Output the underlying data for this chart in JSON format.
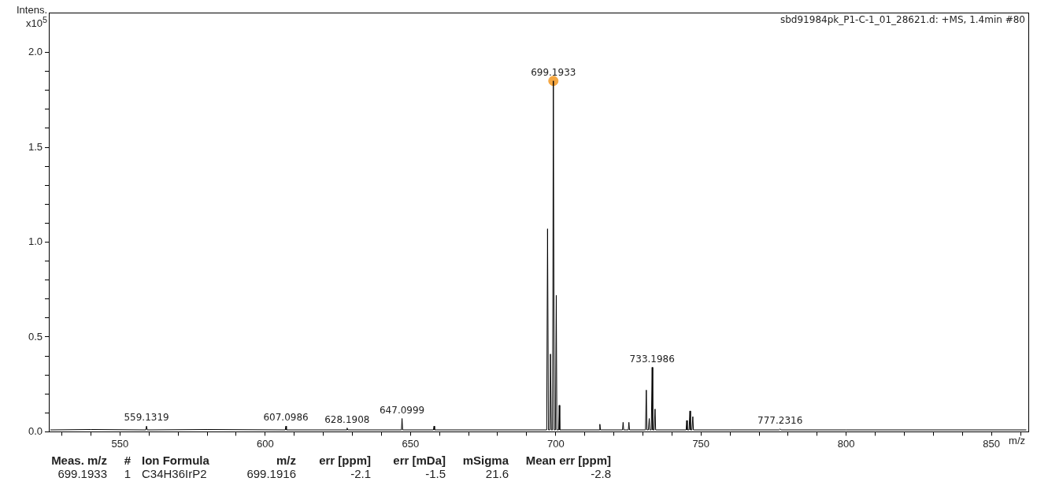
{
  "chart_data": {
    "type": "line",
    "title": "sbd91984pk_P1-C-1_01_28621.d: +MS, 1.4min #80",
    "xlabel": "m/z",
    "ylabel": "Intens. x10$^{5}$",
    "xlim": [
      525.5,
      862.7
    ],
    "xticks": [
      {
        "value": 530,
        "label": null
      },
      {
        "value": 540,
        "label": null
      },
      550,
      {
        "value": 560,
        "label": null
      },
      {
        "value": 570,
        "label": null
      },
      {
        "value": 580,
        "label": null
      },
      {
        "value": 590,
        "label": null
      },
      600,
      {
        "value": 610,
        "label": null
      },
      {
        "value": 620,
        "label": null
      },
      {
        "value": 630,
        "label": null
      },
      {
        "value": 640,
        "label": null
      },
      650,
      {
        "value": 660,
        "label": null
      },
      {
        "value": 670,
        "label": null
      },
      {
        "value": 680,
        "label": null
      },
      {
        "value": 690,
        "label": null
      },
      700,
      {
        "value": 710,
        "label": null
      },
      {
        "value": 720,
        "label": null
      },
      {
        "value": 730,
        "label": null
      },
      {
        "value": 740,
        "label": null
      },
      750,
      {
        "value": 760,
        "label": null
      },
      {
        "value": 770,
        "label": null
      },
      {
        "value": 780,
        "label": null
      },
      {
        "value": 790,
        "label": null
      },
      800,
      {
        "value": 810,
        "label": null
      },
      {
        "value": 820,
        "label": null
      },
      {
        "value": 830,
        "label": null
      },
      {
        "value": 840,
        "label": null
      },
      850,
      {
        "value": 860,
        "label": null
      }
    ],
    "ylim": [
      0,
      2.21
    ],
    "yticks": [
      {
        "value": 0,
        "label": "0.0"
      },
      {
        "value": 0.1,
        "label": null
      },
      {
        "value": 0.2,
        "label": null
      },
      {
        "value": 0.3,
        "label": null
      },
      {
        "value": 0.4,
        "label": null
      },
      0.5,
      {
        "value": 0.6,
        "label": null
      },
      {
        "value": 0.7,
        "label": null
      },
      {
        "value": 0.8,
        "label": null
      },
      {
        "value": 0.9,
        "label": null
      },
      {
        "value": 1,
        "label": "1.0"
      },
      {
        "value": 1.1,
        "label": null
      },
      {
        "value": 1.2,
        "label": null
      },
      {
        "value": 1.3,
        "label": null
      },
      {
        "value": 1.4,
        "label": null
      },
      1.5,
      {
        "value": 1.6,
        "label": null
      },
      {
        "value": 1.7,
        "label": null
      },
      {
        "value": 1.8,
        "label": null
      },
      {
        "value": 1.9,
        "label": null
      },
      {
        "value": 2,
        "label": "2.0"
      }
    ],
    "grid": false,
    "legend": false,
    "series": [
      {
        "color": "#000000",
        "marker": "none",
        "x": [
          526,
          540,
          558.9,
          559.13,
          559.4,
          580,
          606.9,
          607.1,
          607.3,
          628,
          628.19,
          628.4,
          646.9,
          647.1,
          647.3,
          657.9,
          658.1,
          658.3,
          680,
          696.9,
          697.19,
          697.5,
          698.0,
          698.19,
          698.5,
          698.9,
          699.19,
          699.5,
          699.9,
          700.19,
          700.4,
          701.0,
          701.2,
          701.4,
          715,
          715.2,
          715.4,
          723,
          723.2,
          723.4,
          725,
          725.2,
          725.4,
          730.9,
          731.19,
          731.4,
          731.9,
          732.2,
          732.4,
          732.9,
          733.1986,
          733.4,
          733.9,
          734.2,
          734.4,
          744.9,
          745.1,
          745.3,
          745.9,
          746.2,
          746.4,
          746.9,
          747.2,
          747.4,
          760,
          776.9,
          777.23,
          777.5,
          800,
          862
        ],
        "values": [
          0.01,
          0.012,
          0.01,
          0.03,
          0.01,
          0.012,
          0.01,
          0.03,
          0.01,
          0.01,
          0.02,
          0.01,
          0.01,
          0.07,
          0.01,
          0.01,
          0.03,
          0.01,
          0.01,
          0.01,
          1.07,
          0.01,
          0.01,
          0.41,
          0.01,
          0.01,
          1.85,
          0.01,
          0.01,
          0.72,
          0.01,
          0.01,
          0.14,
          0.01,
          0.01,
          0.04,
          0.01,
          0.01,
          0.05,
          0.01,
          0.01,
          0.05,
          0.01,
          0.01,
          0.22,
          0.01,
          0.01,
          0.07,
          0.01,
          0.01,
          0.34,
          0.01,
          0.01,
          0.12,
          0.01,
          0.01,
          0.06,
          0.01,
          0.01,
          0.11,
          0.01,
          0.01,
          0.08,
          0.01,
          0.01,
          0.01,
          0.015,
          0.01,
          0.01,
          0.01
        ]
      },
      {
        "type": "scatter",
        "color": "#f5a742",
        "marker": "circle",
        "x": [
          699.1933
        ],
        "values": [
          1.85
        ]
      }
    ],
    "annotations": [
      {
        "text": "559.1319",
        "x": 559.13,
        "y": 0.03
      },
      {
        "text": "607.0986",
        "x": 607.1,
        "y": 0.03
      },
      {
        "text": "628.1908",
        "x": 628.19,
        "y": 0.02
      },
      {
        "text": "647.0999",
        "x": 647.1,
        "y": 0.07
      },
      {
        "text": "699.1933",
        "x": 699.19,
        "y": 1.85
      },
      {
        "text": "733.1986",
        "x": 733.1986,
        "y": 0.34
      },
      {
        "text": "777.2316",
        "x": 777.23,
        "y": 0.015
      },
      "Meas. m/z",
      "#",
      "Ion Formula",
      "m/z",
      "err [ppm]",
      "err [mDa]",
      "mSigma",
      "Mean err [ppm]",
      "699.1933",
      "1",
      "C34H36IrP2",
      "699.1916",
      "-2.1",
      "-1.5",
      "21.6",
      "-2.8"
    ]
  }
}
